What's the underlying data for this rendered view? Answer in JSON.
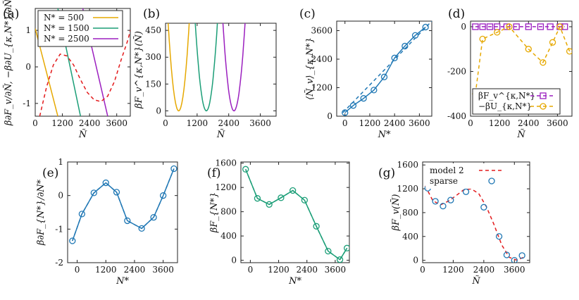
{
  "chart_data": [
    {
      "id": "a",
      "panel_label": "(a)",
      "type": "line",
      "xlabel": "Ñ",
      "ylabel": "β∂F_v/∂Ñ, −β∂U_{κ,N*}/∂Ñ",
      "xlim": [
        0,
        4200
      ],
      "ylim": [
        -1.35,
        1.6
      ],
      "xticks": [
        0,
        1200,
        2400,
        3600
      ],
      "yticks": [
        -1,
        0,
        1
      ],
      "legend_position": "top-left",
      "series": [
        {
          "name": "N* = 500",
          "label": "N* = 500",
          "color": "#e6a800",
          "style": "solid",
          "x": [
            0,
            1000
          ],
          "y": [
            1.05,
            -1.35
          ]
        },
        {
          "name": "N* = 1500",
          "label": "N* = 1500",
          "color": "#1b9e77",
          "style": "solid",
          "x": [
            1000,
            2000
          ],
          "y": [
            1.6,
            -1.35
          ]
        },
        {
          "name": "N* = 2500",
          "label": "N* = 2500",
          "color": "#9b1fbf",
          "style": "solid",
          "x": [
            2100,
            3200
          ],
          "y": [
            1.6,
            -1.35
          ]
        },
        {
          "name": "β∂F_v/∂Ñ",
          "color": "#e31a1c",
          "style": "dashed",
          "x": [
            200,
            500,
            800,
            1100,
            1400,
            1700,
            2000,
            2300,
            2600,
            2900,
            3200,
            3500,
            3800,
            4100,
            4200
          ],
          "y": [
            -1.35,
            -0.55,
            0.05,
            0.35,
            0.3,
            0.05,
            -0.35,
            -0.7,
            -0.9,
            -0.95,
            -0.8,
            -0.4,
            0.2,
            0.75,
            1.0
          ]
        }
      ]
    },
    {
      "id": "b",
      "panel_label": "(b)",
      "type": "line",
      "xlabel": "Ñ",
      "ylabel": "βF_v^{κ,N*}(Ñ)",
      "xlim": [
        0,
        4200
      ],
      "ylim": [
        -30,
        490
      ],
      "xticks": [
        0,
        1200,
        2400,
        3600
      ],
      "yticks": [
        0,
        150,
        300,
        450
      ],
      "series": [
        {
          "name": "N* = 500",
          "color": "#e6a800",
          "center": 500,
          "min": 0,
          "reach": 490,
          "halfwidth": 400
        },
        {
          "name": "N* = 1500",
          "color": "#1b9e77",
          "center": 1550,
          "min": 0,
          "reach": 490,
          "halfwidth": 420
        },
        {
          "name": "N* = 2500",
          "color": "#9b1fbf",
          "center": 2600,
          "min": 0,
          "reach": 490,
          "halfwidth": 420
        }
      ]
    },
    {
      "id": "c",
      "panel_label": "(c)",
      "type": "line",
      "xlabel": "N*",
      "ylabel": "⟨Ñ_v⟩_{κ,N*}",
      "xlim": [
        -400,
        4200
      ],
      "ylim": [
        0,
        4000
      ],
      "xticks": [
        0,
        1200,
        2400,
        3600
      ],
      "yticks": [
        0,
        1200,
        2400,
        3600
      ],
      "series": [
        {
          "name": "points",
          "color": "#1f77b4",
          "marker": "circle",
          "x": [
            0,
            400,
            900,
            1400,
            1900,
            2400,
            2900,
            3400,
            3900
          ],
          "y": [
            150,
            450,
            750,
            1100,
            1650,
            2450,
            2950,
            3400,
            3750
          ]
        },
        {
          "name": "fit",
          "color": "#1f77b4",
          "style": "dashed",
          "x": [
            -100,
            4200
          ],
          "y": [
            150,
            4000
          ]
        }
      ]
    },
    {
      "id": "d",
      "panel_label": "(d)",
      "type": "line",
      "xlabel": "Ñ",
      "ylabel": "",
      "xlim": [
        0,
        4200
      ],
      "ylim": [
        -400,
        25
      ],
      "xticks": [
        0,
        1200,
        2400,
        3600
      ],
      "yticks": [
        -400,
        -200,
        0
      ],
      "legend_position": "bottom-left",
      "series": [
        {
          "name": "βF_v^{κ,N*}",
          "label": "βF_v^{κ,N*}",
          "color": "#9b1fbf",
          "marker": "square",
          "style": "dashed",
          "x": [
            200,
            500,
            800,
            1100,
            1500,
            1900,
            2400,
            2900,
            3300,
            3700,
            3900
          ],
          "y": [
            0,
            0,
            0,
            0,
            0,
            0,
            0,
            0,
            0,
            0,
            0
          ]
        },
        {
          "name": "−βU_{κ,N*}",
          "label": "−βU_{κ,N*}",
          "color": "#e6a800",
          "marker": "circle",
          "style": "dashed",
          "x": [
            200,
            500,
            1100,
            1600,
            2400,
            3000,
            3400,
            3700,
            4100
          ],
          "y": [
            -300,
            -55,
            -25,
            0,
            -100,
            -160,
            -70,
            0,
            -110
          ]
        }
      ]
    },
    {
      "id": "e",
      "panel_label": "(e)",
      "type": "line",
      "xlabel": "N*",
      "ylabel": "β∂F_{N*}/∂N*",
      "xlim": [
        -400,
        4200
      ],
      "ylim": [
        -2,
        1
      ],
      "xticks": [
        0,
        1200,
        2400,
        3600
      ],
      "yticks": [
        -2,
        -1,
        0,
        1
      ],
      "series": [
        {
          "name": "points",
          "color": "#1f77b4",
          "marker": "circle",
          "x": [
            -200,
            200,
            700,
            1200,
            1650,
            2100,
            2700,
            3200,
            3600,
            4050
          ],
          "y": [
            -1.35,
            -0.55,
            0.08,
            0.38,
            0.1,
            -0.75,
            -0.98,
            -0.65,
            0.0,
            0.8
          ]
        },
        {
          "name": "fit",
          "color": "#1f77b4",
          "style": "dashed",
          "x": [
            -200,
            200,
            700,
            1200,
            1650,
            2100,
            2700,
            3200,
            3600,
            4050
          ],
          "y": [
            -1.35,
            -0.55,
            0.08,
            0.38,
            0.1,
            -0.75,
            -0.98,
            -0.65,
            0.0,
            0.8
          ]
        }
      ]
    },
    {
      "id": "f",
      "panel_label": "(f)",
      "type": "line",
      "xlabel": "N*",
      "ylabel": "βF_{N*}",
      "xlim": [
        -400,
        4200
      ],
      "ylim": [
        -40,
        1620
      ],
      "xticks": [
        0,
        1200,
        2400,
        3600
      ],
      "yticks": [
        0,
        400,
        800,
        1200,
        1600
      ],
      "series": [
        {
          "name": "points",
          "color": "#1b9e77",
          "marker": "circle",
          "x": [
            -200,
            300,
            800,
            1300,
            1800,
            2300,
            2800,
            3300,
            3800,
            4100
          ],
          "y": [
            1500,
            1020,
            920,
            1030,
            1150,
            990,
            560,
            150,
            10,
            200
          ]
        },
        {
          "name": "fit",
          "color": "#1b9e77",
          "style": "dashed",
          "x": [
            -200,
            300,
            800,
            1300,
            1800,
            2300,
            2800,
            3300,
            3800,
            4100
          ],
          "y": [
            1500,
            1020,
            920,
            1030,
            1150,
            990,
            560,
            150,
            10,
            200
          ]
        }
      ]
    },
    {
      "id": "g",
      "panel_label": "(g)",
      "type": "line",
      "xlabel": "Ñ",
      "ylabel": "βF_v(Ñ)",
      "xlim": [
        0,
        4200
      ],
      "ylim": [
        -40,
        1650
      ],
      "xticks": [
        0,
        1200,
        2400,
        3600
      ],
      "yticks": [
        0,
        400,
        800,
        1200,
        1600
      ],
      "legend_position": "top-left",
      "series": [
        {
          "name": "model 2",
          "label": "model 2",
          "color": "#e31a1c",
          "style": "dashed",
          "x": [
            100,
            400,
            700,
            1000,
            1300,
            1600,
            1900,
            2200,
            2500,
            2800,
            3100,
            3400,
            3700,
            4000
          ],
          "y": [
            1250,
            1000,
            930,
            990,
            1080,
            1180,
            1200,
            1120,
            900,
            600,
            260,
            50,
            0,
            60
          ]
        },
        {
          "name": "sparse",
          "label": "sparse",
          "color": "#1f77b4",
          "marker": "circle",
          "style": "none",
          "x": [
            200,
            500,
            800,
            1100,
            1700,
            2400,
            3000,
            3300,
            3600,
            3900
          ],
          "y": [
            1210,
            990,
            910,
            1010,
            1150,
            890,
            400,
            90,
            0,
            80
          ]
        }
      ]
    }
  ]
}
